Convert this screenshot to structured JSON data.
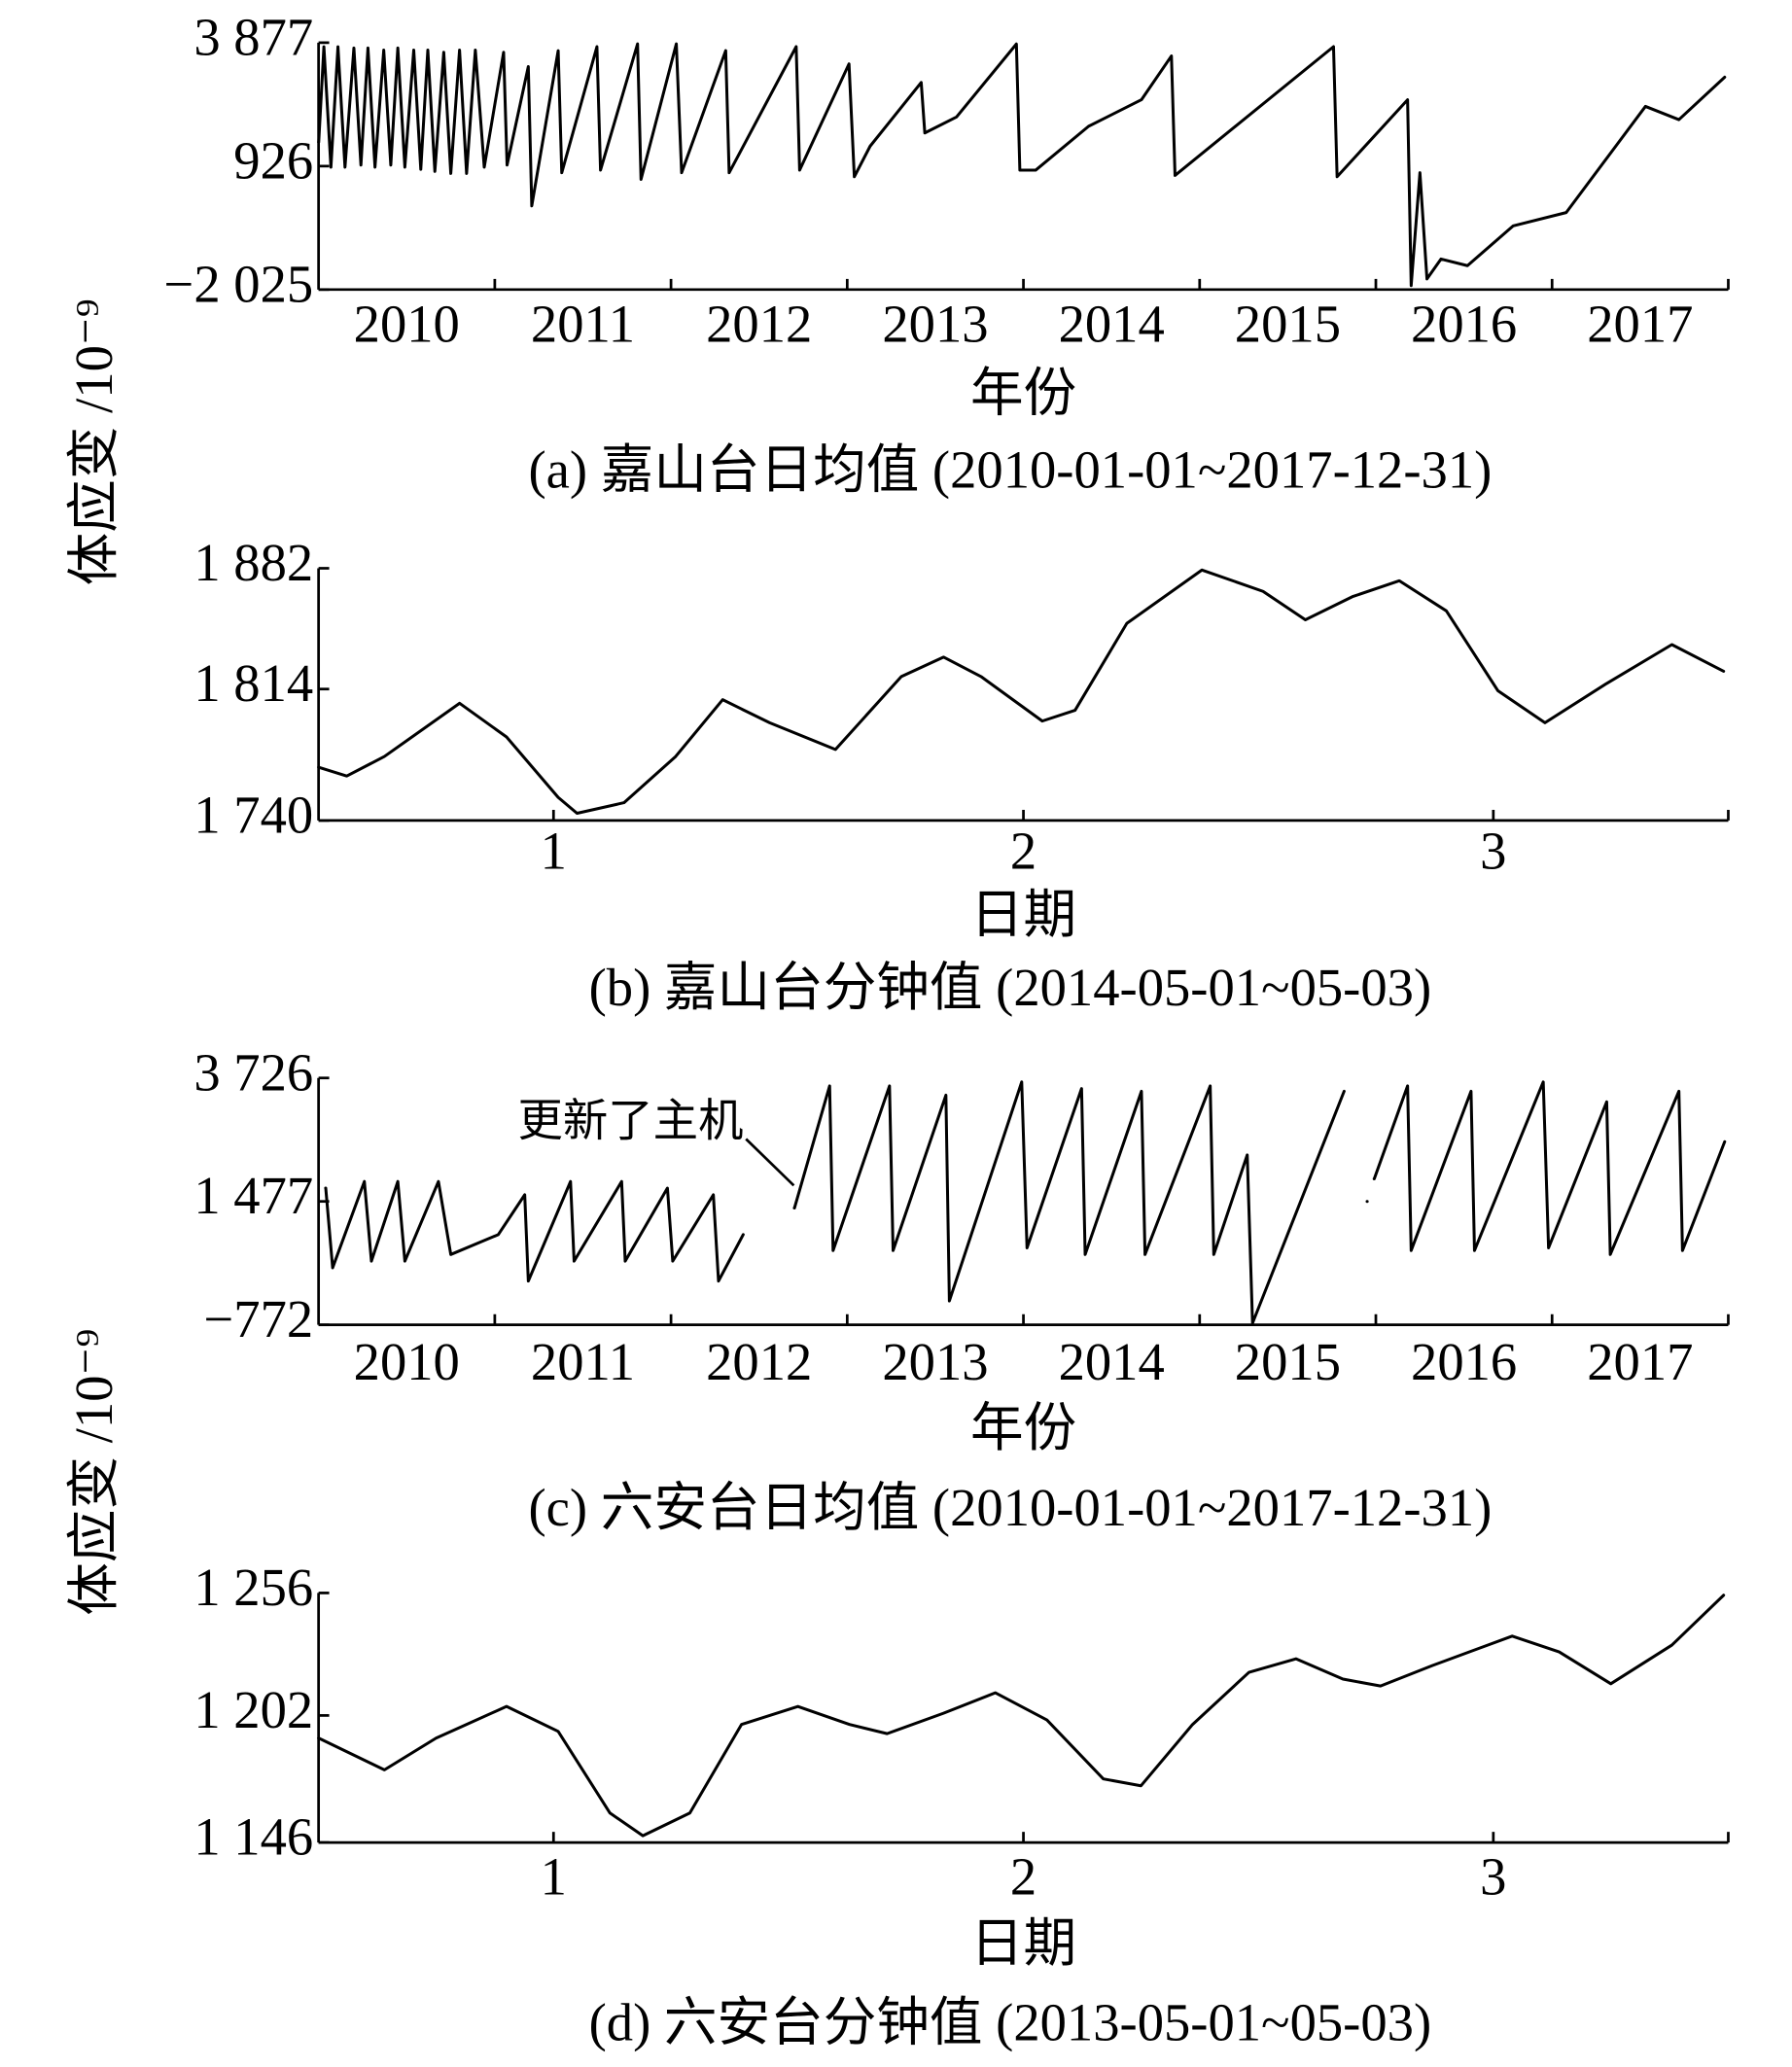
{
  "chart_data": [
    {
      "type": "line",
      "caption": "(a) 嘉山台日均值 (2010-01-01~2017-12-31)",
      "xlabel": "年份",
      "ylabel": "体应变 /10⁻⁹",
      "color": "#000000",
      "xlim": [
        2010,
        2018
      ],
      "ylim": [
        -2025,
        3877
      ],
      "xticks": [
        {
          "value": 2010.5,
          "label": "2010"
        },
        {
          "value": 2011.5,
          "label": "2011"
        },
        {
          "value": 2012.5,
          "label": "2012"
        },
        {
          "value": 2013.5,
          "label": "2013"
        },
        {
          "value": 2014.5,
          "label": "2014"
        },
        {
          "value": 2015.5,
          "label": "2015"
        },
        {
          "value": 2016.5,
          "label": "2016"
        },
        {
          "value": 2017.5,
          "label": "2017"
        }
      ],
      "xminorticks": [
        2011,
        2012,
        2013,
        2014,
        2015,
        2016,
        2017
      ],
      "yticks": [
        {
          "value": 3877,
          "label": "3 877"
        },
        926,
        {
          "value": -2025,
          "label": "−2 025"
        }
      ],
      "x": [
        2010.0,
        2010.03,
        2010.07,
        2010.11,
        2010.15,
        2010.2,
        2010.24,
        2010.28,
        2010.32,
        2010.37,
        2010.41,
        2010.45,
        2010.49,
        2010.54,
        2010.58,
        2010.62,
        2010.66,
        2010.71,
        2010.75,
        2010.8,
        2010.84,
        2010.89,
        2010.94,
        2011.05,
        2011.07,
        2011.19,
        2011.21,
        2011.36,
        2011.38,
        2011.58,
        2011.6,
        2011.81,
        2011.83,
        2012.03,
        2012.06,
        2012.31,
        2012.33,
        2012.71,
        2012.73,
        2013.01,
        2013.04,
        2013.13,
        2013.42,
        2013.44,
        2013.62,
        2013.96,
        2013.98,
        2014.07,
        2014.37,
        2014.67,
        2014.84,
        2014.86,
        2015.76,
        2015.78,
        2016.18,
        2016.2,
        2016.25,
        2016.29,
        2016.37,
        2016.52,
        2016.78,
        2017.08,
        2017.53,
        2017.72,
        2017.98
      ],
      "values": [
        1500,
        3780,
        900,
        3780,
        900,
        3750,
        950,
        3750,
        900,
        3700,
        950,
        3750,
        900,
        3700,
        850,
        3700,
        800,
        3650,
        750,
        3700,
        750,
        3700,
        900,
        3650,
        950,
        3306,
        -26,
        3687,
        768,
        3782,
        831,
        3850,
        609,
        3850,
        768,
        3687,
        768,
        3782,
        831,
        3369,
        672,
        1402,
        2925,
        1719,
        2100,
        3845,
        831,
        831,
        1878,
        2513,
        3560,
        704,
        3782,
        672,
        2513,
        -1930,
        767,
        -1771,
        -1295,
        -1454,
        -502,
        -185,
        2354,
        2037,
        3052
      ]
    },
    {
      "type": "line",
      "caption": "(b) 嘉山台分钟值 (2014-05-01~05-03)",
      "xlabel": "日期",
      "color": "#000000",
      "xlim": [
        0.5,
        3.5
      ],
      "ylim": [
        1740,
        1882
      ],
      "xticks": [
        1,
        2,
        3
      ],
      "yticks": [
        {
          "value": 1882,
          "label": "1 882"
        },
        {
          "value": 1814,
          "label": "1 814"
        },
        {
          "value": 1740,
          "label": "1 740"
        }
      ],
      "x": [
        0.5,
        0.56,
        0.64,
        0.8,
        0.9,
        1.01,
        1.05,
        1.15,
        1.26,
        1.36,
        1.46,
        1.6,
        1.74,
        1.83,
        1.91,
        2.04,
        2.11,
        2.22,
        2.38,
        2.51,
        2.6,
        2.7,
        2.8,
        2.9,
        3.01,
        3.11,
        3.24,
        3.38,
        3.49
      ],
      "values": [
        1770,
        1765,
        1776,
        1806,
        1787,
        1753,
        1744,
        1750,
        1776,
        1808,
        1795,
        1780,
        1821,
        1832,
        1821,
        1796,
        1802,
        1851,
        1881,
        1869,
        1853,
        1866,
        1875,
        1858,
        1813,
        1795,
        1817,
        1839,
        1824
      ]
    },
    {
      "type": "line",
      "caption": "(c) 六安台日均值 (2010-01-01~2017-12-31)",
      "xlabel": "年份",
      "ylabel": "体应变 /10⁻⁹",
      "annotation": "更新了主机",
      "color": "#000000",
      "xlim": [
        2010,
        2018
      ],
      "ylim": [
        -772,
        3726
      ],
      "xticks": [
        {
          "value": 2010.5,
          "label": "2010"
        },
        {
          "value": 2011.5,
          "label": "2011"
        },
        {
          "value": 2012.5,
          "label": "2012"
        },
        {
          "value": 2013.5,
          "label": "2013"
        },
        {
          "value": 2014.5,
          "label": "2014"
        },
        {
          "value": 2015.5,
          "label": "2015"
        },
        {
          "value": 2016.5,
          "label": "2016"
        },
        {
          "value": 2017.5,
          "label": "2017"
        }
      ],
      "xminorticks": [
        2011,
        2012,
        2013,
        2014,
        2015,
        2016,
        2017
      ],
      "yticks": [
        {
          "value": 3726,
          "label": "3 726"
        },
        {
          "value": 1477,
          "label": "1 477"
        },
        {
          "value": -772,
          "label": "−772"
        }
      ],
      "x": [
        2010.04,
        2010.08,
        2010.26,
        2010.3,
        2010.45,
        2010.49,
        2010.68,
        2010.75,
        2011.02,
        2011.17,
        2011.19,
        2011.43,
        2011.45,
        2011.72,
        2011.74,
        2011.98,
        2012.01,
        2012.24,
        2012.27,
        2012.41,
        2012.55,
        2012.7,
        2012.9,
        2012.92,
        2013.24,
        2013.26,
        2013.56,
        2013.58,
        2013.99,
        2014.02,
        2014.33,
        2014.35,
        2014.67,
        2014.69,
        2015.06,
        2015.08,
        2015.27,
        2015.3,
        2015.82,
        2015.88,
        2015.95,
        2015.97,
        2015.99,
        2016.18,
        2016.2,
        2016.54,
        2016.56,
        2016.95,
        2016.98,
        2017.31,
        2017.33,
        2017.72,
        2017.74,
        2017.98
      ],
      "values": [
        1719,
        268,
        1840,
        389,
        1840,
        389,
        1840,
        510,
        873,
        1598,
        26,
        1840,
        389,
        1840,
        389,
        1719,
        389,
        1598,
        26,
        873,
        null,
        1356,
        3581,
        583,
        3581,
        583,
        3412,
        -336,
        3653,
        631,
        3533,
        510,
        3484,
        510,
        3581,
        510,
        2324,
        -740,
        3484,
        null,
        1477,
        null,
        1888,
        3581,
        583,
        3484,
        583,
        3653,
        631,
        3291,
        510,
        3484,
        583,
        2565
      ]
    },
    {
      "type": "line",
      "caption": "(d) 六安台分钟值 (2013-05-01~05-03)",
      "xlabel": "日期",
      "color": "#000000",
      "xlim": [
        0.5,
        3.5
      ],
      "ylim": [
        1146,
        1256
      ],
      "xticks": [
        1,
        2,
        3
      ],
      "yticks": [
        {
          "value": 1256,
          "label": "1 256"
        },
        {
          "value": 1202,
          "label": "1 202"
        },
        {
          "value": 1146,
          "label": "1 146"
        }
      ],
      "x": [
        0.5,
        0.64,
        0.75,
        0.9,
        1.01,
        1.12,
        1.19,
        1.29,
        1.4,
        1.52,
        1.63,
        1.71,
        1.83,
        1.94,
        2.05,
        2.17,
        2.25,
        2.36,
        2.48,
        2.58,
        2.68,
        2.76,
        2.87,
        3.04,
        3.14,
        3.25,
        3.38,
        3.49
      ],
      "values": [
        1192,
        1178,
        1192,
        1206,
        1195,
        1159,
        1149,
        1159,
        1198,
        1206,
        1198,
        1194,
        1203,
        1212,
        1200,
        1174,
        1171,
        1198,
        1221,
        1227,
        1218,
        1215,
        1224,
        1237,
        1230,
        1216,
        1233,
        1255
      ]
    }
  ]
}
